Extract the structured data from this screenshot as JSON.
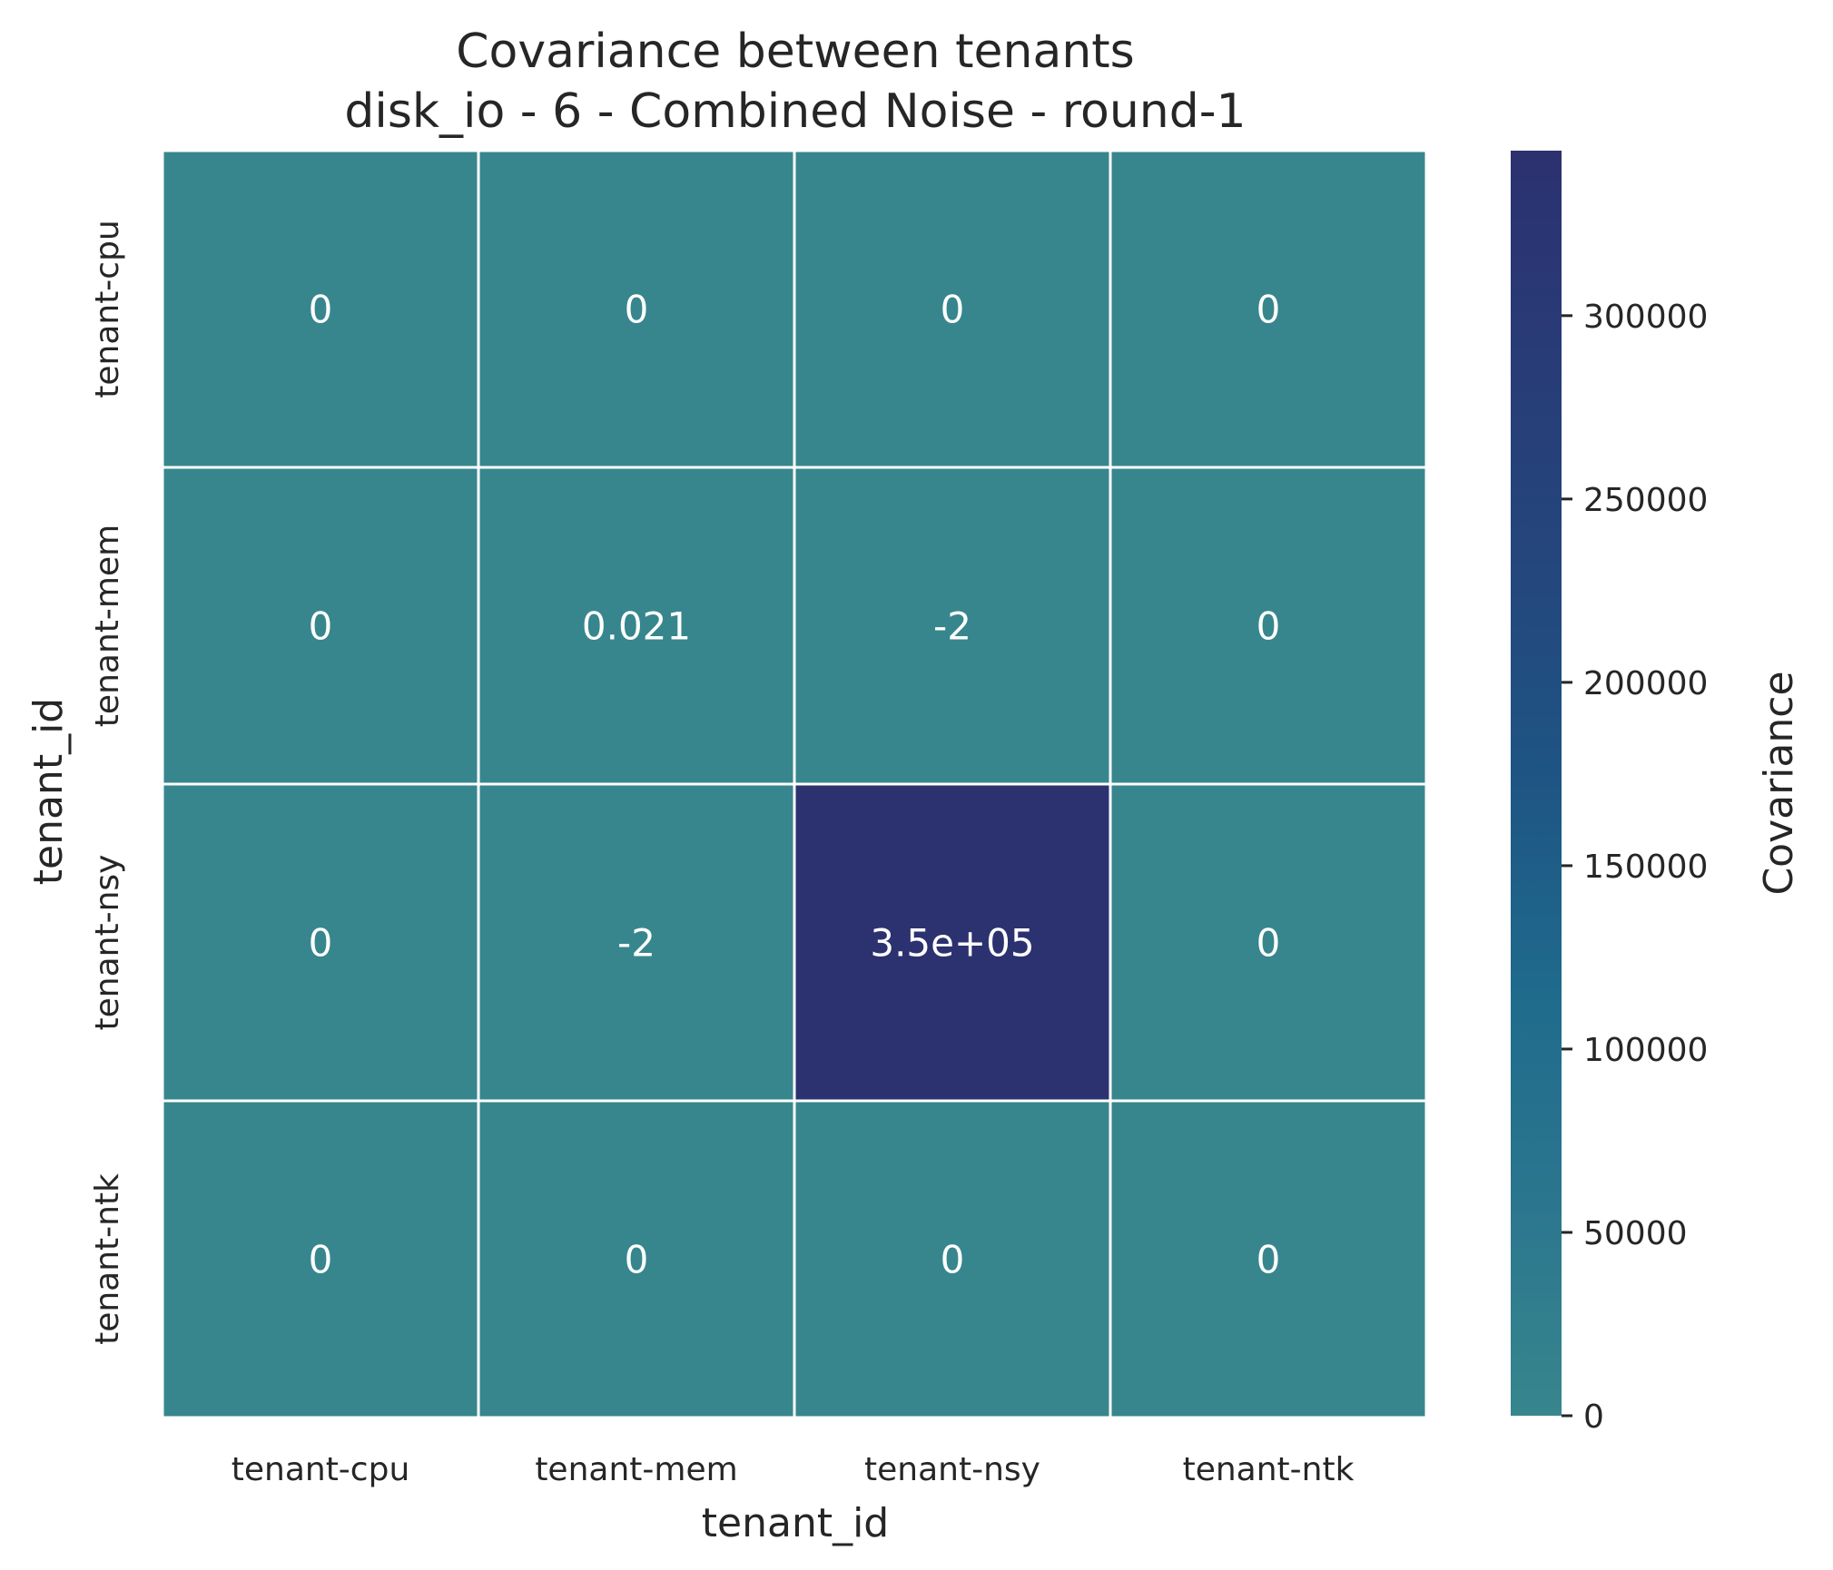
{
  "chart_data": {
    "type": "heatmap",
    "title_lines": [
      "Covariance between tenants",
      "disk_io - 6 - Combined Noise - round-1"
    ],
    "xlabel": "tenant_id",
    "ylabel": "tenant_id",
    "x_categories": [
      "tenant-cpu",
      "tenant-mem",
      "tenant-nsy",
      "tenant-ntk"
    ],
    "y_categories": [
      "tenant-cpu",
      "tenant-mem",
      "tenant-nsy",
      "tenant-ntk"
    ],
    "values": [
      [
        0,
        0,
        0,
        0
      ],
      [
        0,
        0.021,
        -2,
        0
      ],
      [
        0,
        -2,
        350000,
        0
      ],
      [
        0,
        0,
        0,
        0
      ]
    ],
    "cell_labels": [
      [
        "0",
        "0",
        "0",
        "0"
      ],
      [
        "0",
        "0.021",
        "-2",
        "0"
      ],
      [
        "0",
        "-2",
        "3.5e+05",
        "0"
      ],
      [
        "0",
        "0",
        "0",
        "0"
      ]
    ],
    "colorbar": {
      "label": "Covariance",
      "min": 0,
      "max": 345000,
      "ticks": [
        0,
        50000,
        100000,
        150000,
        200000,
        250000,
        300000
      ],
      "tick_labels": [
        "0",
        "50000",
        "100000",
        "150000",
        "200000",
        "250000",
        "300000"
      ],
      "colors": [
        "#37868d",
        "#2b768e",
        "#1f6b8c",
        "#1e5584",
        "#24477d",
        "#283c78",
        "#2c3170"
      ]
    },
    "grid": false
  }
}
